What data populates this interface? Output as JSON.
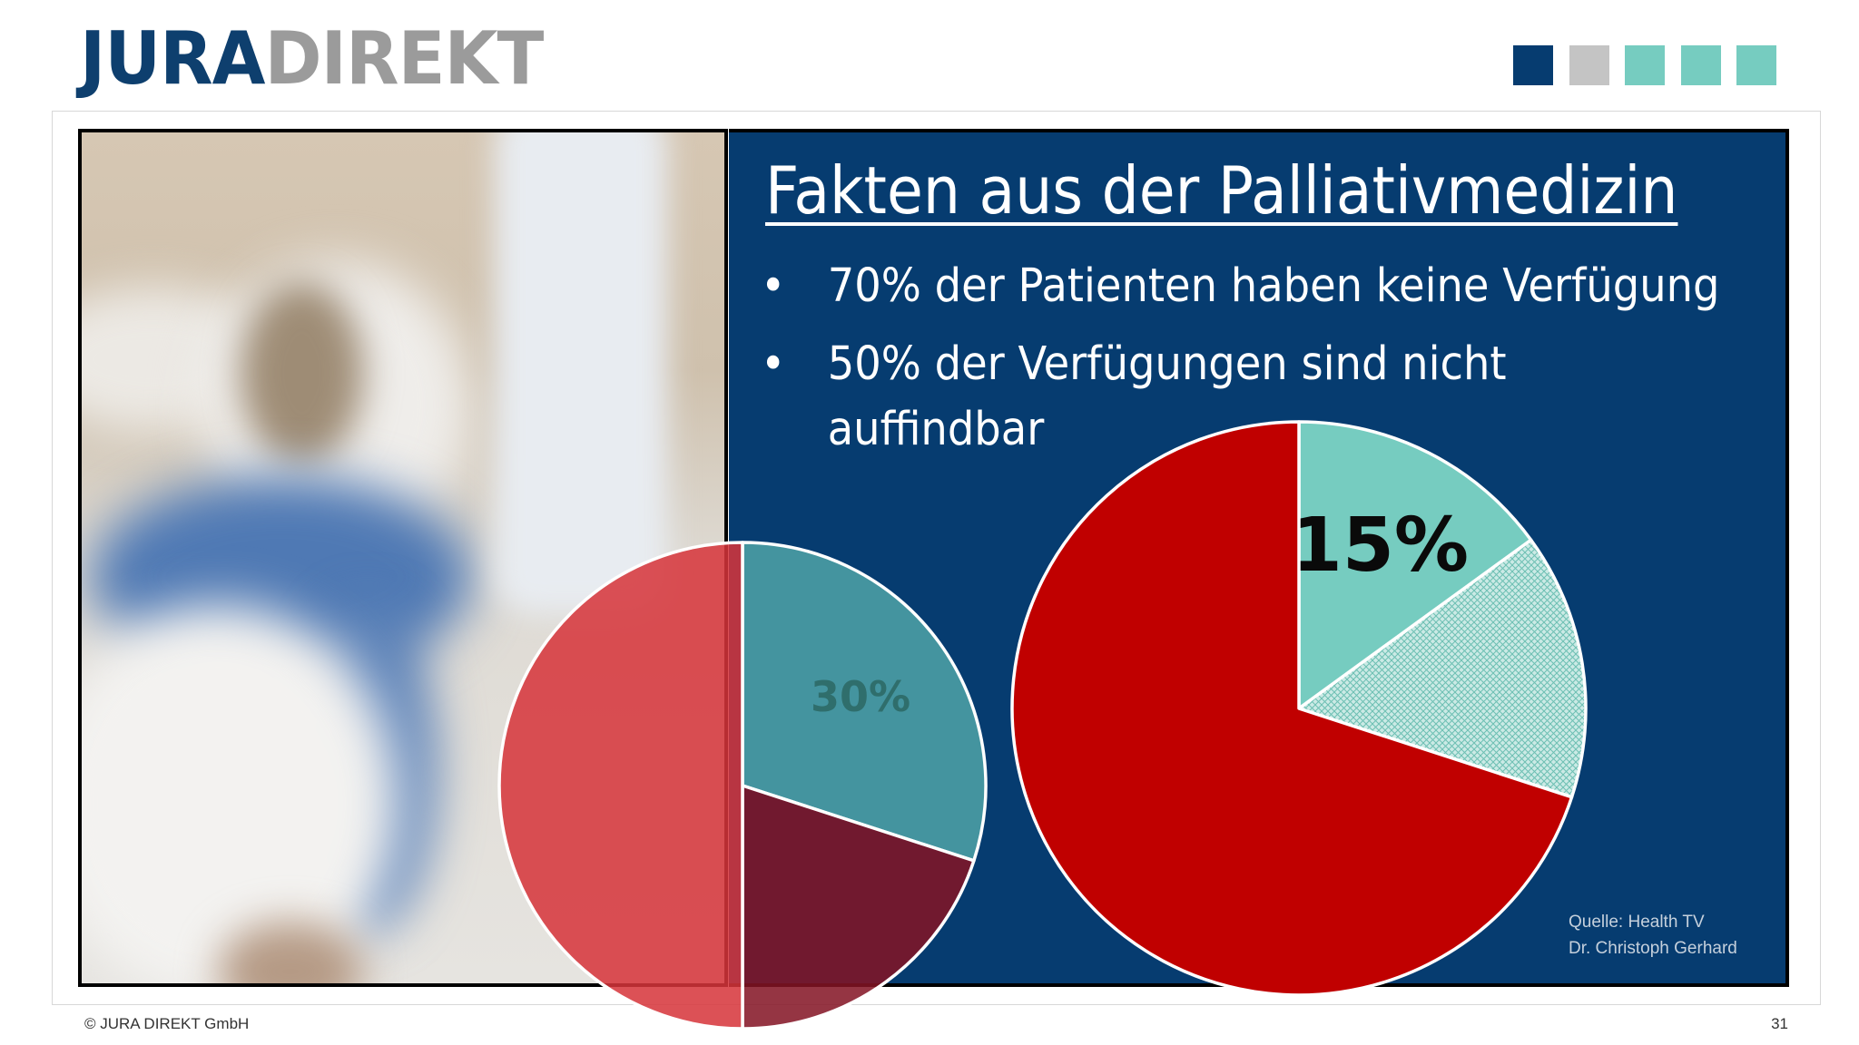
{
  "logo": {
    "part1": "JURA",
    "part2": "DIREKT"
  },
  "decoration_squares": [
    "#063c70",
    "#c4c4c4",
    "#76ccc0",
    "#76ccc0",
    "#76ccc0"
  ],
  "slide": {
    "title": "Fakten aus der Palliativmedizin",
    "bullet_symbol": "•",
    "bullets": [
      {
        "text": "70% der Patienten haben keine Verfügung"
      },
      {
        "text": "50% der Verfügungen sind nicht",
        "continuation": "auffindbar"
      }
    ]
  },
  "chart_data": [
    {
      "type": "pie",
      "title": "",
      "slices": [
        {
          "value": 30,
          "color": "#4fa3a6",
          "label": "30%"
        },
        {
          "value": 20,
          "color": "#831424",
          "label": ""
        },
        {
          "value": 50,
          "color": "#d6343a",
          "label": ""
        }
      ],
      "start_angle_deg": 0,
      "direction": "clockwise"
    },
    {
      "type": "pie",
      "title": "",
      "slices": [
        {
          "value": 15,
          "color": "#76ccc0",
          "label": "15%"
        },
        {
          "value": 15,
          "color": "#c9e9e4",
          "label": "",
          "pattern": "crosshatch"
        },
        {
          "value": 70,
          "color": "#c00000",
          "label": ""
        }
      ],
      "start_angle_deg": 0,
      "direction": "clockwise"
    }
  ],
  "source": {
    "line1": "Quelle: Health TV",
    "line2": "Dr. Christoph Gerhard"
  },
  "footer": {
    "copyright": "© JURA DIREKT GmbH",
    "page": "31"
  }
}
